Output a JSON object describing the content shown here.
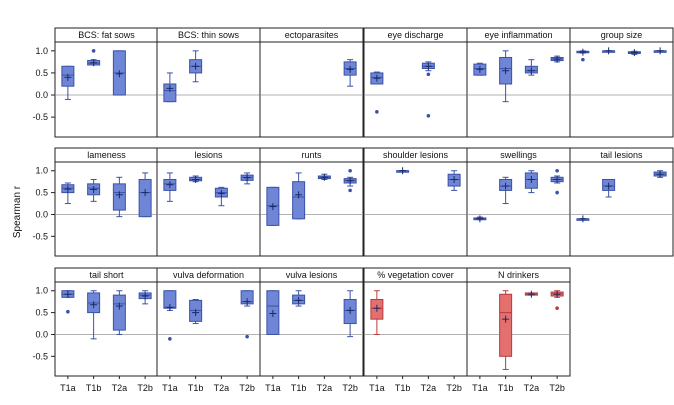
{
  "chart_data": {
    "type": "boxplot",
    "ylabel": "Spearman r",
    "categories": [
      "T1a",
      "T1b",
      "T2a",
      "T2b"
    ],
    "yticks": [
      1.0,
      0.5,
      0.0,
      -0.5
    ],
    "ytick_labels": [
      "1.0",
      "0.5",
      "0.0",
      "-0.5"
    ],
    "ylim": [
      -0.95,
      1.2
    ],
    "colors": {
      "blue": "#6f86d6",
      "blue_edge": "#3b52a8",
      "red": "#e36f6f",
      "red_edge": "#b83c3c"
    },
    "panels": [
      {
        "title": "BCS: fat sows",
        "color": "blue",
        "boxes": [
          {
            "cat": "T1a",
            "min": -0.1,
            "q1": 0.2,
            "med": 0.45,
            "q3": 0.65,
            "max": 0.65,
            "mean": 0.4
          },
          {
            "cat": "T1b",
            "min": 0.68,
            "q1": 0.68,
            "med": 0.72,
            "q3": 0.78,
            "max": 0.8,
            "mean": 0.73,
            "outliers": [
              1.0
            ]
          },
          {
            "cat": "T2a",
            "min": 0.0,
            "q1": 0.0,
            "med": 0.5,
            "q3": 1.0,
            "max": 1.0,
            "mean": 0.48
          }
        ]
      },
      {
        "title": "BCS: thin sows",
        "color": "blue",
        "boxes": [
          {
            "cat": "T1a",
            "min": -0.15,
            "q1": -0.15,
            "med": 0.1,
            "q3": 0.25,
            "max": 0.5,
            "mean": 0.15
          },
          {
            "cat": "T1b",
            "min": 0.3,
            "q1": 0.5,
            "med": 0.65,
            "q3": 0.8,
            "max": 1.0,
            "mean": 0.65
          }
        ]
      },
      {
        "title": "ectoparasites",
        "color": "blue",
        "boxes": [
          {
            "cat": "T2b",
            "min": 0.2,
            "q1": 0.45,
            "med": 0.6,
            "q3": 0.75,
            "max": 0.8,
            "mean": 0.58
          }
        ]
      },
      {
        "title": "eye discharge",
        "color": "blue",
        "boxes": [
          {
            "cat": "T1a",
            "min": 0.25,
            "q1": 0.25,
            "med": 0.4,
            "q3": 0.5,
            "max": 0.52,
            "mean": 0.38,
            "outliers": [
              -0.38
            ]
          },
          {
            "cat": "T2a",
            "min": 0.55,
            "q1": 0.6,
            "med": 0.65,
            "q3": 0.72,
            "max": 0.75,
            "mean": 0.65,
            "outliers": [
              0.47,
              -0.47
            ]
          }
        ]
      },
      {
        "title": "eye inflammation",
        "color": "blue",
        "boxes": [
          {
            "cat": "T1a",
            "min": 0.45,
            "q1": 0.45,
            "med": 0.6,
            "q3": 0.7,
            "max": 0.72,
            "mean": 0.58
          },
          {
            "cat": "T1b",
            "min": -0.15,
            "q1": 0.25,
            "med": 0.6,
            "q3": 0.85,
            "max": 1.0,
            "mean": 0.55
          },
          {
            "cat": "T2a",
            "min": 0.45,
            "q1": 0.5,
            "med": 0.55,
            "q3": 0.65,
            "max": 0.8,
            "mean": 0.55
          },
          {
            "cat": "T2b",
            "min": 0.75,
            "q1": 0.78,
            "med": 0.82,
            "q3": 0.85,
            "max": 0.88,
            "mean": 0.81
          }
        ]
      },
      {
        "title": "group size",
        "color": "blue",
        "boxes": [
          {
            "cat": "T1a",
            "min": 0.95,
            "q1": 0.96,
            "med": 0.98,
            "q3": 0.99,
            "max": 1.0,
            "mean": 0.97,
            "outliers": [
              0.8
            ]
          },
          {
            "cat": "T1b",
            "min": 0.99,
            "q1": 0.99,
            "med": 1.0,
            "q3": 1.0,
            "max": 1.0,
            "mean": 1.0
          },
          {
            "cat": "T2a",
            "min": 0.92,
            "q1": 0.94,
            "med": 0.96,
            "q3": 0.98,
            "max": 0.99,
            "mean": 0.96
          },
          {
            "cat": "T2b",
            "min": 0.99,
            "q1": 0.99,
            "med": 1.0,
            "q3": 1.0,
            "max": 1.0,
            "mean": 1.0
          }
        ]
      },
      {
        "title": "lameness",
        "color": "blue",
        "boxes": [
          {
            "cat": "T1a",
            "min": 0.25,
            "q1": 0.5,
            "med": 0.6,
            "q3": 0.68,
            "max": 0.72,
            "mean": 0.58
          },
          {
            "cat": "T1b",
            "min": 0.3,
            "q1": 0.45,
            "med": 0.6,
            "q3": 0.7,
            "max": 0.8,
            "mean": 0.57
          },
          {
            "cat": "T2a",
            "min": -0.05,
            "q1": 0.1,
            "med": 0.5,
            "q3": 0.7,
            "max": 0.85,
            "mean": 0.45
          },
          {
            "cat": "T2b",
            "min": -0.05,
            "q1": -0.05,
            "med": 0.5,
            "q3": 0.8,
            "max": 0.95,
            "mean": 0.5
          }
        ]
      },
      {
        "title": "lesions",
        "color": "blue",
        "boxes": [
          {
            "cat": "T1a",
            "min": 0.3,
            "q1": 0.55,
            "med": 0.7,
            "q3": 0.8,
            "max": 0.95,
            "mean": 0.68
          },
          {
            "cat": "T1b",
            "min": 0.75,
            "q1": 0.77,
            "med": 0.8,
            "q3": 0.85,
            "max": 0.88,
            "mean": 0.8
          },
          {
            "cat": "T2a",
            "min": 0.2,
            "q1": 0.4,
            "med": 0.5,
            "q3": 0.6,
            "max": 0.62,
            "mean": 0.48
          },
          {
            "cat": "T2b",
            "min": 0.7,
            "q1": 0.78,
            "med": 0.85,
            "q3": 0.9,
            "max": 0.95,
            "mean": 0.84
          }
        ]
      },
      {
        "title": "runts",
        "color": "blue",
        "boxes": [
          {
            "cat": "T1a",
            "min": -0.25,
            "q1": -0.25,
            "med": 0.2,
            "q3": 0.62,
            "max": 0.62,
            "mean": 0.18
          },
          {
            "cat": "T1b",
            "min": -0.1,
            "q1": -0.1,
            "med": 0.4,
            "q3": 0.75,
            "max": 0.95,
            "mean": 0.45
          },
          {
            "cat": "T2a",
            "min": 0.8,
            "q1": 0.82,
            "med": 0.85,
            "q3": 0.88,
            "max": 0.92,
            "mean": 0.85
          },
          {
            "cat": "T2b",
            "min": 0.65,
            "q1": 0.72,
            "med": 0.78,
            "q3": 0.82,
            "max": 0.85,
            "mean": 0.77,
            "outliers": [
              1.0,
              0.55
            ]
          }
        ]
      },
      {
        "title": "shoulder lesions",
        "color": "blue",
        "boxes": [
          {
            "cat": "T1b",
            "min": 1.0,
            "q1": 1.0,
            "med": 1.0,
            "q3": 1.0,
            "max": 1.0,
            "mean": 1.0
          },
          {
            "cat": "T2b",
            "min": 0.55,
            "q1": 0.65,
            "med": 0.8,
            "q3": 0.92,
            "max": 1.0,
            "mean": 0.8
          }
        ]
      },
      {
        "title": "swellings",
        "color": "blue",
        "boxes": [
          {
            "cat": "T1a",
            "min": -0.12,
            "q1": -0.12,
            "med": -0.1,
            "q3": -0.08,
            "max": -0.06,
            "mean": -0.1
          },
          {
            "cat": "T1b",
            "min": 0.25,
            "q1": 0.55,
            "med": 0.65,
            "q3": 0.8,
            "max": 0.85,
            "mean": 0.65
          },
          {
            "cat": "T2a",
            "min": 0.5,
            "q1": 0.6,
            "med": 0.8,
            "q3": 0.95,
            "max": 1.0,
            "mean": 0.8
          },
          {
            "cat": "T2b",
            "min": 0.72,
            "q1": 0.75,
            "med": 0.8,
            "q3": 0.85,
            "max": 0.88,
            "mean": 0.8,
            "outliers": [
              1.0,
              0.5
            ]
          }
        ]
      },
      {
        "title": "tail lesions",
        "color": "blue",
        "boxes": [
          {
            "cat": "T1a",
            "min": -0.1,
            "q1": -0.1,
            "med": -0.1,
            "q3": -0.1,
            "max": -0.1,
            "mean": -0.1
          },
          {
            "cat": "T1b",
            "min": 0.4,
            "q1": 0.55,
            "med": 0.65,
            "q3": 0.8,
            "max": 0.8,
            "mean": 0.65
          },
          {
            "cat": "T2b",
            "min": 0.85,
            "q1": 0.88,
            "med": 0.92,
            "q3": 0.97,
            "max": 1.0,
            "mean": 0.92
          }
        ]
      },
      {
        "title": "tail short",
        "color": "blue",
        "boxes": [
          {
            "cat": "T1a",
            "min": 0.85,
            "q1": 0.85,
            "med": 0.92,
            "q3": 1.0,
            "max": 1.0,
            "mean": 0.92,
            "outliers": [
              0.52
            ]
          },
          {
            "cat": "T1b",
            "min": -0.1,
            "q1": 0.5,
            "med": 0.72,
            "q3": 0.95,
            "max": 1.0,
            "mean": 0.68
          },
          {
            "cat": "T2a",
            "min": 0.0,
            "q1": 0.1,
            "med": 0.7,
            "q3": 0.9,
            "max": 1.0,
            "mean": 0.65
          },
          {
            "cat": "T2b",
            "min": 0.7,
            "q1": 0.82,
            "med": 0.9,
            "q3": 0.95,
            "max": 1.0,
            "mean": 0.88
          }
        ]
      },
      {
        "title": "vulva deformation",
        "color": "blue",
        "boxes": [
          {
            "cat": "T1a",
            "min": 0.55,
            "q1": 0.6,
            "med": 0.62,
            "q3": 1.0,
            "max": 1.0,
            "mean": 0.62,
            "outliers": [
              -0.1
            ]
          },
          {
            "cat": "T1b",
            "min": 0.25,
            "q1": 0.3,
            "med": 0.55,
            "q3": 0.78,
            "max": 0.8,
            "mean": 0.5
          },
          {
            "cat": "T2b",
            "min": 0.65,
            "q1": 0.7,
            "med": 0.75,
            "q3": 1.0,
            "max": 1.0,
            "mean": 0.75,
            "outliers": [
              -0.05
            ]
          }
        ]
      },
      {
        "title": "vulva lesions",
        "color": "blue",
        "boxes": [
          {
            "cat": "T1a",
            "min": 0.0,
            "q1": 0.0,
            "med": 0.65,
            "q3": 1.0,
            "max": 1.0,
            "mean": 0.48
          },
          {
            "cat": "T1b",
            "min": 0.65,
            "q1": 0.7,
            "med": 0.78,
            "q3": 0.9,
            "max": 1.0,
            "mean": 0.78
          },
          {
            "cat": "T2b",
            "min": -0.05,
            "q1": 0.25,
            "med": 0.55,
            "q3": 0.8,
            "max": 1.0,
            "mean": 0.55
          }
        ]
      },
      {
        "title": "% vegetation cover",
        "color": "red",
        "boxes": [
          {
            "cat": "T1a",
            "min": 0.0,
            "q1": 0.35,
            "med": 0.6,
            "q3": 0.8,
            "max": 1.0,
            "mean": 0.6
          }
        ]
      },
      {
        "title": "N drinkers",
        "color": "red",
        "boxes": [
          {
            "cat": "T1b",
            "min": -0.8,
            "q1": -0.5,
            "med": 0.5,
            "q3": 0.92,
            "max": 1.0,
            "mean": 0.35
          },
          {
            "cat": "T2a",
            "min": 0.9,
            "q1": 0.9,
            "med": 0.92,
            "q3": 0.95,
            "max": 0.95,
            "mean": 0.92
          },
          {
            "cat": "T2b",
            "min": 0.85,
            "q1": 0.88,
            "med": 0.93,
            "q3": 0.97,
            "max": 1.0,
            "mean": 0.92,
            "outliers": [
              0.6
            ]
          }
        ]
      }
    ]
  }
}
